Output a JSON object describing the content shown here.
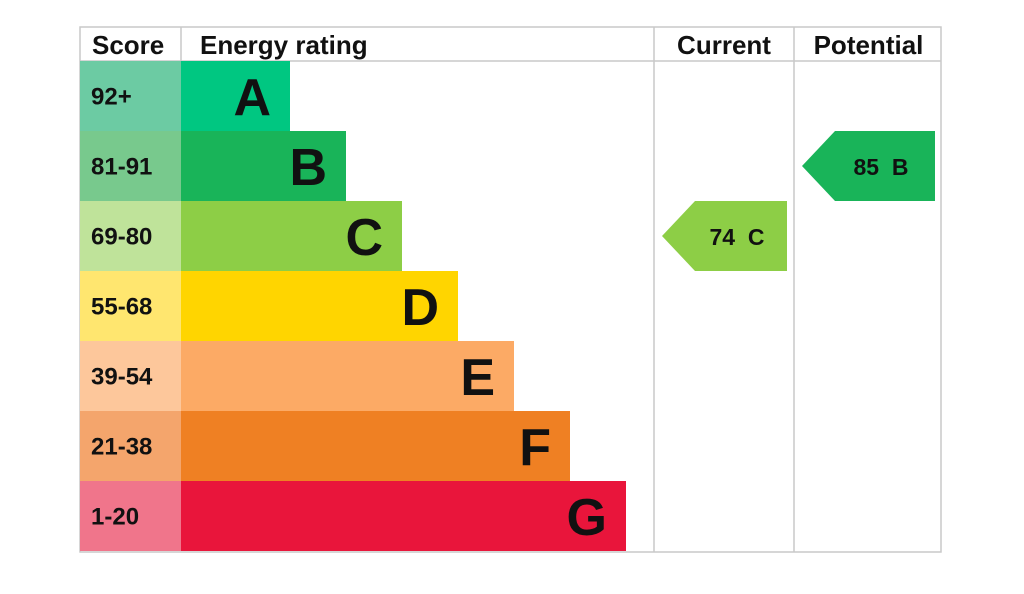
{
  "chart_data": {
    "type": "bar",
    "headers": {
      "score": "Score",
      "rating": "Energy rating",
      "current": "Current",
      "potential": "Potential"
    },
    "bands": [
      {
        "letter": "A",
        "range": "92+",
        "min": 92,
        "max": 100,
        "color": "#00c781",
        "score_bg": "#6ccba3"
      },
      {
        "letter": "B",
        "range": "81-91",
        "min": 81,
        "max": 91,
        "color": "#19b459",
        "score_bg": "#78c98d"
      },
      {
        "letter": "C",
        "range": "69-80",
        "min": 69,
        "max": 80,
        "color": "#8dce46",
        "score_bg": "#bfe39a"
      },
      {
        "letter": "D",
        "range": "55-68",
        "min": 55,
        "max": 68,
        "color": "#ffd500",
        "score_bg": "#ffe66f"
      },
      {
        "letter": "E",
        "range": "39-54",
        "min": 39,
        "max": 54,
        "color": "#fcaa65",
        "score_bg": "#fdc79b"
      },
      {
        "letter": "F",
        "range": "21-38",
        "min": 21,
        "max": 38,
        "color": "#ef8023",
        "score_bg": "#f4a56c"
      },
      {
        "letter": "G",
        "range": "1-20",
        "min": 1,
        "max": 20,
        "color": "#e9153b",
        "score_bg": "#f0758b"
      }
    ],
    "current": {
      "value": 74,
      "band": "C",
      "label": "74  C",
      "color": "#8dce46"
    },
    "potential": {
      "value": 85,
      "band": "B",
      "label": "85  B",
      "color": "#19b459"
    }
  }
}
